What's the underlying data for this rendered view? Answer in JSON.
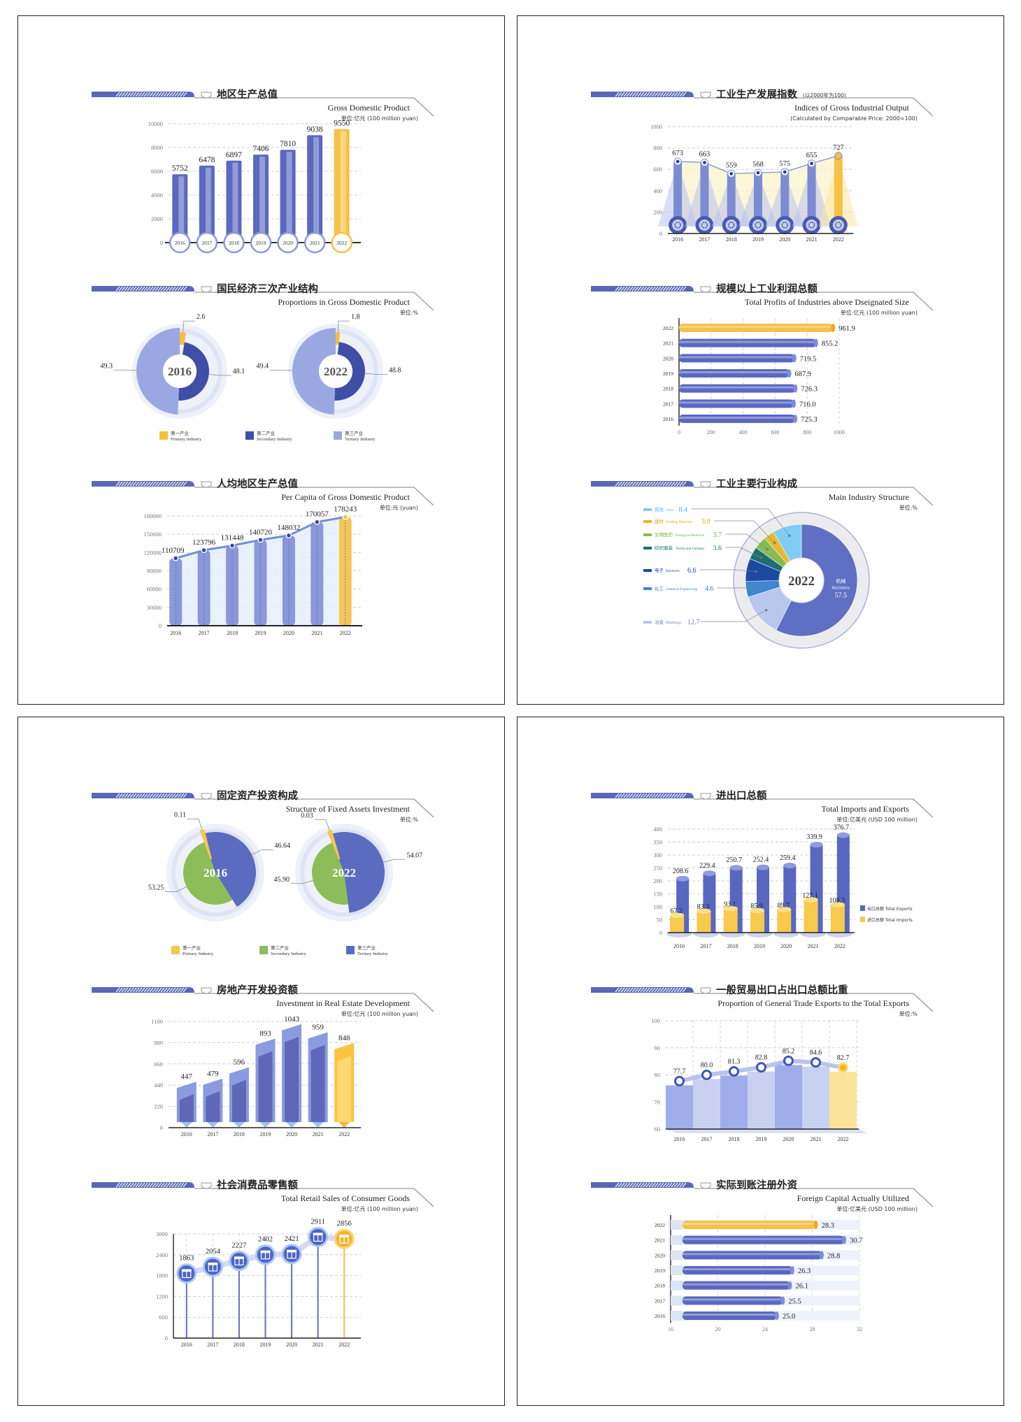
{
  "chart_data": [
    {
      "type": "bar",
      "title": "地区生产总值",
      "subtitle": "Gross Domestic Product",
      "unit": "单位:亿元 (100 million yuan)",
      "categories": [
        "2016",
        "2017",
        "2018",
        "2019",
        "2020",
        "2021",
        "2022"
      ],
      "values": [
        5752,
        6478,
        6897,
        7406,
        7810,
        9038,
        9550
      ],
      "ylim": [
        0,
        10000
      ],
      "yticks": [
        0,
        2000,
        4000,
        6000,
        8000,
        10000
      ],
      "grid": true,
      "highlight": "2022",
      "colors": {
        "bar": "#5a68c0",
        "highlight": "#f5c146"
      }
    },
    {
      "type": "pie",
      "title": "国民经济三次产业结构",
      "subtitle": "Proportions in Gross Domestic Product",
      "unit": "单位:%",
      "legend": [
        {
          "cn": "第一产业",
          "en": "Primary Industry",
          "color": "#f5bf3c"
        },
        {
          "cn": "第二产业",
          "en": "Secondary Industry",
          "color": "#3f4ea6"
        },
        {
          "cn": "第三产业",
          "en": "Tertiary Industry",
          "color": "#9aa8e2"
        }
      ],
      "pies": [
        {
          "year": "2016",
          "values": [
            2.6,
            48.1,
            49.3
          ]
        },
        {
          "year": "2022",
          "values": [
            1.8,
            48.8,
            49.4
          ]
        }
      ],
      "legend_position": "bottom"
    },
    {
      "type": "line",
      "title": "人均地区生产总值",
      "subtitle": "Per Capita of Gross Domestic Product",
      "unit": "单位:元 (yuan)",
      "categories": [
        "2016",
        "2017",
        "2018",
        "2019",
        "2020",
        "2021",
        "2022"
      ],
      "values": [
        110709,
        123796,
        131448,
        140720,
        148032,
        170057,
        178243
      ],
      "ylim": [
        0,
        180000
      ],
      "yticks": [
        0,
        30000,
        60000,
        90000,
        120000,
        150000,
        180000
      ],
      "grid": true,
      "highlight": "2022"
    },
    {
      "type": "line",
      "title": "工业生产发展指数",
      "title_note": "(以2000年为100)",
      "subtitle": "Indices of Gross Industrial Output",
      "unit": "(Calculated by Comparable Price: 2000=100)",
      "categories": [
        "2016",
        "2017",
        "2018",
        "2019",
        "2020",
        "2021",
        "2022"
      ],
      "values": [
        673,
        663,
        559,
        568,
        575,
        655,
        727
      ],
      "ylim": [
        0,
        1000
      ],
      "yticks": [
        0,
        200,
        400,
        600,
        800,
        1000
      ],
      "grid": true,
      "highlight": "2022"
    },
    {
      "type": "bar",
      "orientation": "horizontal",
      "title": "规模以上工业利润总额",
      "subtitle": "Total Profits of Industries above Dseignated Size",
      "unit": "单位:亿元 (100 million yuan)",
      "categories": [
        "2016",
        "2017",
        "2018",
        "2019",
        "2020",
        "2021",
        "2022"
      ],
      "values": [
        725.3,
        716.0,
        726.3,
        687.9,
        719.5,
        855.2,
        961.9
      ],
      "value_labels": [
        "725.3",
        "716.0",
        "726.3",
        "687.9",
        "719.5",
        "855.2",
        "961.9"
      ],
      "xlim": [
        0,
        1000
      ],
      "xticks": [
        0,
        200,
        400,
        600,
        800,
        1000
      ],
      "grid": true,
      "highlight": "2022"
    },
    {
      "type": "pie",
      "title": "工业主要行业构成",
      "subtitle": "Main Industry Structure",
      "unit": "单位:%",
      "center_label": "2022",
      "slices": [
        {
          "cn": "机械",
          "en": "Machinery",
          "value": 57.5,
          "label": "57.5",
          "color": "#5f6fc4"
        },
        {
          "cn": "冶金",
          "en": "Metallurgy",
          "value": 12.7,
          "label": "12.7",
          "color": "#b9c6ee"
        },
        {
          "cn": "化工",
          "en": "Chemical Engineering",
          "value": 4.6,
          "label": "4.6",
          "color": "#3d86d0"
        },
        {
          "cn": "电子",
          "en": "Electronic",
          "value": 6.6,
          "label": "6.6",
          "color": "#1d49a3"
        },
        {
          "cn": "纺织服装",
          "en": "Textile and Garment",
          "value": 3.6,
          "label": "3.6",
          "color": "#1f6d74"
        },
        {
          "cn": "生物医药",
          "en": "Biological Medicine",
          "value": 3.7,
          "label": "3.7",
          "color": "#86bb52"
        },
        {
          "cn": "建材",
          "en": "Building Materials",
          "value": 3.0,
          "label": "3.0",
          "color": "#e6b92e"
        },
        {
          "cn": "其他",
          "en": "Other",
          "value": 8.4,
          "label": "8.4",
          "color": "#7fcdf2"
        }
      ],
      "label_colors": {
        "Other": "#4fb6ea",
        "Building Materials": "#d9a40f",
        "Biological Medicine": "#6fb23e",
        "Textile and Garment": "#147a6a",
        "Electronic": "#1d49a3",
        "Chemical Engineering": "#2a86d2",
        "Metallurgy": "#6d7cc6"
      }
    },
    {
      "type": "pie",
      "title": "固定资产投资构成",
      "subtitle": "Structure of Fixed Assets Investment",
      "unit": "单位:%",
      "legend": [
        {
          "cn": "第一产业",
          "en": "Primary Industry",
          "color": "#f7c64a"
        },
        {
          "cn": "第二产业",
          "en": "Secondary Industry",
          "color": "#8cbd58"
        },
        {
          "cn": "第三产业",
          "en": "Tertiary Industry",
          "color": "#5a6bc0"
        }
      ],
      "pies": [
        {
          "year": "2016",
          "values": [
            0.11,
            53.25,
            46.64
          ],
          "labels": [
            "0.11",
            "53.25",
            "46.64"
          ]
        },
        {
          "year": "2022",
          "values": [
            0.03,
            45.9,
            54.07
          ],
          "labels": [
            "0.03",
            "45.90",
            "54.07"
          ]
        }
      ],
      "legend_position": "bottom"
    },
    {
      "type": "bar",
      "title": "房地产开发投资额",
      "subtitle": "Investment in Real Estate Development",
      "unit": "单位:亿元 (100 million yuan)",
      "categories": [
        "2016",
        "2017",
        "2018",
        "2019",
        "2020",
        "2021",
        "2022"
      ],
      "values": [
        447,
        479,
        596,
        893,
        1043,
        959,
        848
      ],
      "ylim": [
        0,
        1100
      ],
      "yticks": [
        0,
        220,
        440,
        660,
        880,
        1100
      ],
      "grid": true,
      "highlight": "2022"
    },
    {
      "type": "line",
      "title": "社会消费品零售额",
      "subtitle": "Total Retail Sales of Consumer Goods",
      "unit": "单位:亿元 (100 million yuan)",
      "categories": [
        "2016",
        "2017",
        "2018",
        "2019",
        "2020",
        "2021",
        "2022"
      ],
      "values": [
        1863,
        2054,
        2227,
        2402,
        2421,
        2911,
        2856
      ],
      "ylim": [
        0,
        3000
      ],
      "yticks": [
        0,
        600,
        1200,
        1800,
        2400,
        3000
      ],
      "grid": true,
      "highlight": "2022",
      "marker_icon": "gift-icon"
    },
    {
      "type": "bar",
      "title": "进出口总额",
      "subtitle": "Total Imports and Exports",
      "unit": "单位:亿美元 (USD 100 million)",
      "categories": [
        "2016",
        "2017",
        "2018",
        "2019",
        "2020",
        "2021",
        "2022"
      ],
      "series": [
        {
          "name": "出口总额 Total Exports",
          "values": [
            208.6,
            229.4,
            250.7,
            252.4,
            259.4,
            339.9,
            376.7
          ],
          "color": "#5867c0"
        },
        {
          "name": "进口总额 Total Imports",
          "values": [
            67.2,
            83.3,
            93.1,
            85.9,
            89.7,
            127.1,
            108.3
          ],
          "color": "#f7c94c"
        }
      ],
      "ylim": [
        0,
        400
      ],
      "yticks": [
        0,
        50,
        100,
        150,
        200,
        250,
        300,
        350,
        400
      ],
      "grid": true,
      "legend_position": "right"
    },
    {
      "type": "area",
      "title": "一般贸易出口占出口总额比重",
      "subtitle": "Proportion of General Trade Exports to the Total Exports",
      "unit": "单位:%",
      "categories": [
        "2016",
        "2017",
        "2018",
        "2019",
        "2020",
        "2021",
        "2022"
      ],
      "values": [
        77.7,
        80.0,
        81.3,
        82.8,
        85.2,
        84.6,
        82.7
      ],
      "value_labels": [
        "77.7",
        "80.0",
        "81.3",
        "82.8",
        "85.2",
        "84.6",
        "82.7"
      ],
      "ylim": [
        60,
        100
      ],
      "yticks": [
        60,
        70,
        80,
        90,
        100
      ],
      "grid": true,
      "highlight": "2022"
    },
    {
      "type": "bar",
      "orientation": "horizontal",
      "title": "实际到账注册外资",
      "subtitle": "Foreign Capital Actually Utilized",
      "unit": "单位:亿美元 (USD 100 million)",
      "categories": [
        "2016",
        "2017",
        "2018",
        "2019",
        "2020",
        "2021",
        "2022"
      ],
      "values": [
        25.0,
        25.5,
        26.1,
        26.3,
        28.8,
        30.7,
        28.3
      ],
      "value_labels": [
        "25.0",
        "25.5",
        "26.1",
        "26.3",
        "28.8",
        "30.7",
        "28.3"
      ],
      "xlim": [
        16,
        32
      ],
      "xticks": [
        16,
        20,
        24,
        28,
        32
      ],
      "grid": true,
      "highlight": "2022"
    }
  ]
}
